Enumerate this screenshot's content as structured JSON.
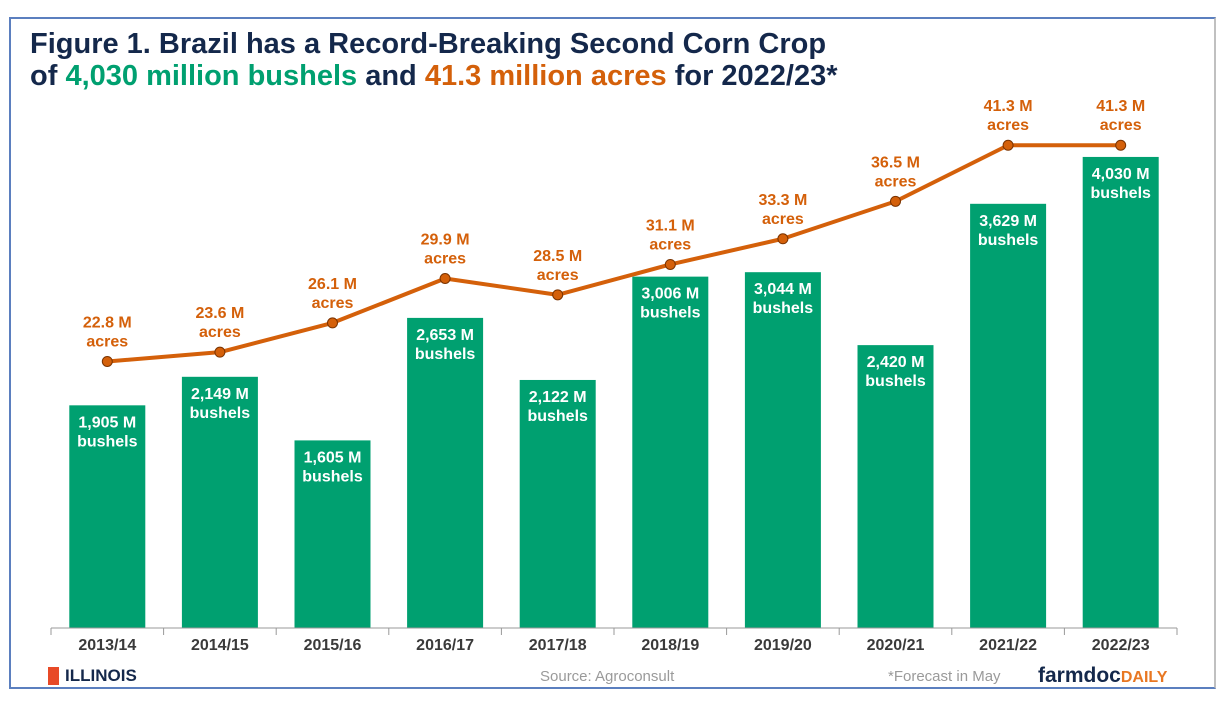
{
  "title": {
    "line1": "Figure 1. Brazil has a Record-Breaking Second Corn Crop",
    "line2_pre": "of ",
    "line2_bushels": "4,030 million bushels",
    "line2_mid": " and ",
    "line2_acres": "41.3 million acres",
    "line2_post": " for 2022/23*"
  },
  "chart_data": {
    "type": "bar+line",
    "categories": [
      "2013/14",
      "2014/15",
      "2015/16",
      "2016/17",
      "2017/18",
      "2018/19",
      "2019/20",
      "2020/21",
      "2021/22",
      "2022/23"
    ],
    "series": [
      {
        "type": "bar",
        "values": [
          1905,
          2149,
          1605,
          2653,
          2122,
          3006,
          3044,
          2420,
          3629,
          4030
        ],
        "labels": [
          "1,905 M",
          "2,149 M",
          "1,605 M",
          "2,653 M",
          "2,122 M",
          "3,006 M",
          "3,044 M",
          "2,420 M",
          "3,629 M",
          "4,030 M"
        ],
        "unit_label": "bushels",
        "color": "#00a070",
        "ylim": [
          0,
          4500
        ]
      },
      {
        "type": "line",
        "values": [
          22.8,
          23.6,
          26.1,
          29.9,
          28.5,
          31.1,
          33.3,
          36.5,
          41.3,
          41.3
        ],
        "labels": [
          "22.8 M",
          "23.6 M",
          "26.1 M",
          "29.9 M",
          "28.5 M",
          "31.1 M",
          "33.3 M",
          "36.5 M",
          "41.3 M",
          "41.3 M"
        ],
        "unit_label": "acres",
        "color": "#d4600a",
        "ylim": [
          0,
          45
        ]
      }
    ],
    "grid": false
  },
  "footer": {
    "logo_left": "ILLINOIS",
    "source": "Source: Agroconsult",
    "note": "*Forecast in May",
    "logo_right_a": "farmdoc",
    "logo_right_b": "DAILY"
  }
}
